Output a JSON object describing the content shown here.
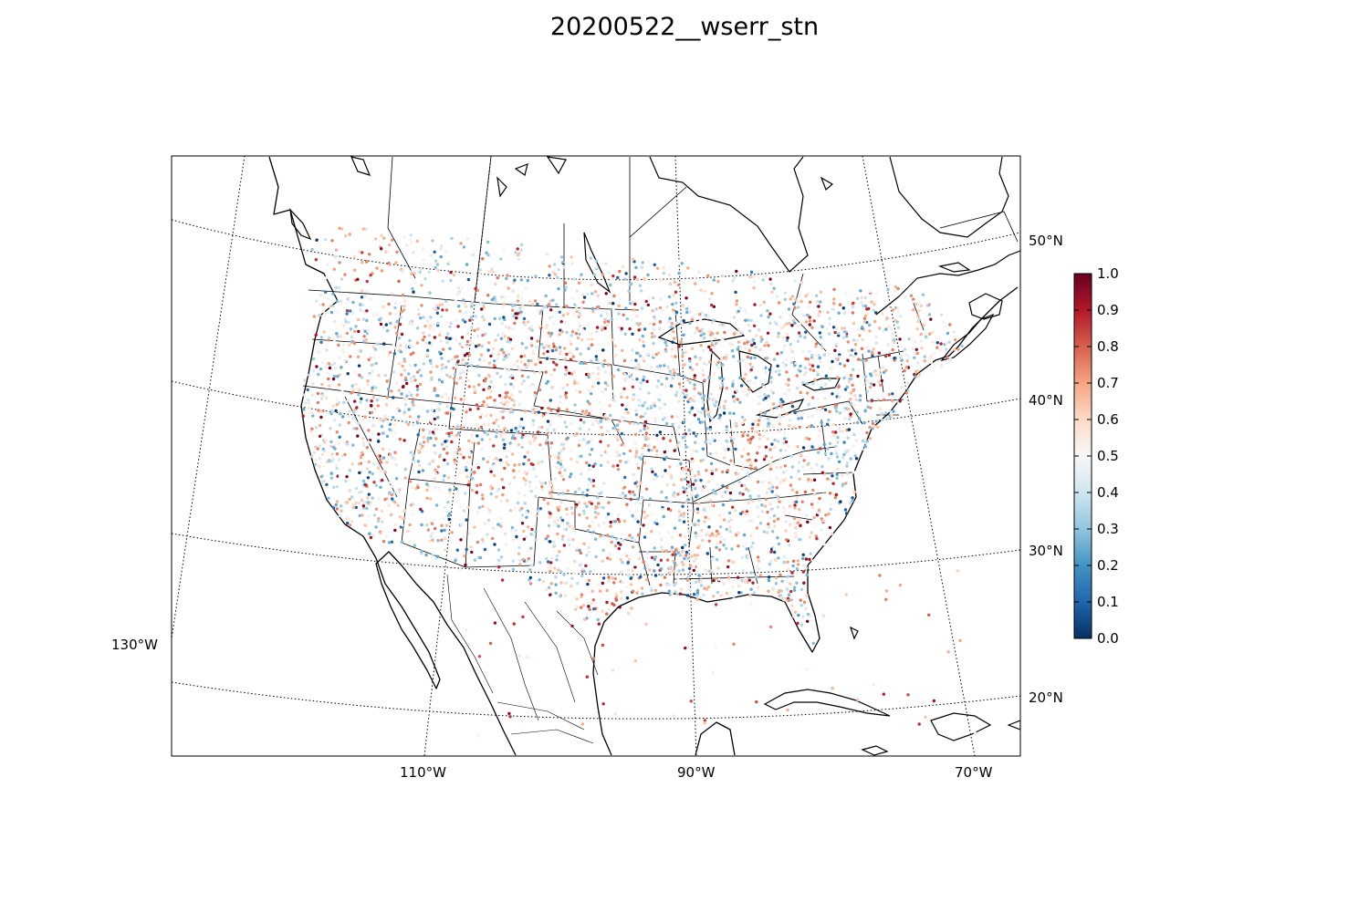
{
  "title": "20200522__wserr_stn",
  "map": {
    "projection": "lambert-conformal",
    "graticule_style": "dotted",
    "lat_labels": [
      "50°N",
      "40°N",
      "30°N",
      "20°N"
    ],
    "lon_labels": [
      "130°W",
      "110°W",
      "90°W",
      "70°W"
    ],
    "marker": "filled-circle",
    "colormap": "RdBu_r"
  },
  "colorbar": {
    "vmin": 0.0,
    "vmax": 1.0,
    "ticks": [
      "0.0",
      "0.1",
      "0.2",
      "0.3",
      "0.4",
      "0.5",
      "0.6",
      "0.7",
      "0.8",
      "0.9",
      "1.0"
    ],
    "colors": [
      "#053061",
      "#2166ac",
      "#4393c3",
      "#92c5de",
      "#d1e5f0",
      "#f7f7f7",
      "#fddbc7",
      "#f4a582",
      "#d6604d",
      "#b2182b",
      "#67001f"
    ]
  }
}
